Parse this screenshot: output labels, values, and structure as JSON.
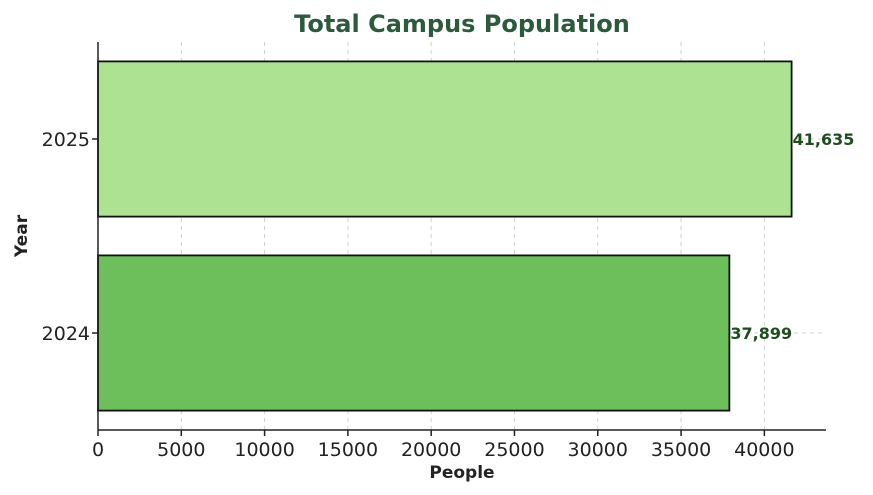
{
  "chart_data": {
    "type": "bar",
    "orientation": "horizontal",
    "title": "Total Campus Population",
    "xlabel": "People",
    "ylabel": "Year",
    "categories": [
      "2024",
      "2025"
    ],
    "values": [
      37899,
      41635
    ],
    "value_labels": [
      "37,899",
      "41,635"
    ],
    "bar_colors": [
      "#6dbf5b",
      "#ade292"
    ],
    "xlim": [
      0,
      43700
    ],
    "xticks": [
      0,
      5000,
      10000,
      15000,
      20000,
      25000,
      30000,
      35000,
      40000
    ],
    "grid": true,
    "title_color": "#2d5a3d",
    "label_color": "#1e4d1e"
  }
}
